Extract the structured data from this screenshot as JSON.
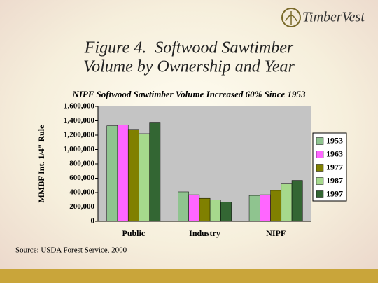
{
  "logo": "TimberVest",
  "source": "Source: USDA Forest Service, 2000",
  "chart_data": {
    "type": "bar",
    "title": [
      "Figure 4.  Softwood Sawtimber",
      "Volume by Ownership and Year"
    ],
    "subtitle": "NIPF Softwood Sawtimber Volume Increased 60% Since 1953",
    "y_label": "MMBF Int. 1/4\" Rule",
    "categories": [
      "Public",
      "Industry",
      "NIPF"
    ],
    "series": [
      {
        "name": "1953",
        "color": "#8fc48f",
        "values": [
          1330000,
          410000,
          360000
        ]
      },
      {
        "name": "1963",
        "color": "#ff66ff",
        "values": [
          1340000,
          370000,
          370000
        ]
      },
      {
        "name": "1977",
        "color": "#808000",
        "values": [
          1280000,
          320000,
          430000
        ]
      },
      {
        "name": "1987",
        "color": "#a6d98c",
        "values": [
          1220000,
          300000,
          520000
        ]
      },
      {
        "name": "1997",
        "color": "#336633",
        "values": [
          1380000,
          270000,
          570000
        ]
      }
    ],
    "ylim": [
      0,
      1600000
    ],
    "yticks": [
      0,
      {
        "value": 200000,
        "label": "200,000"
      },
      {
        "value": 400000,
        "label": "400,000"
      },
      {
        "value": 600000,
        "label": "600,000"
      },
      {
        "value": 800000,
        "label": "800,000"
      },
      {
        "value": 1000000,
        "label": "1,000,000"
      },
      {
        "value": 1200000,
        "label": "1,200,000"
      },
      {
        "value": 1400000,
        "label": "1,400,000"
      },
      {
        "value": 1600000,
        "label": "1,600,000"
      }
    ],
    "legend": "right"
  }
}
